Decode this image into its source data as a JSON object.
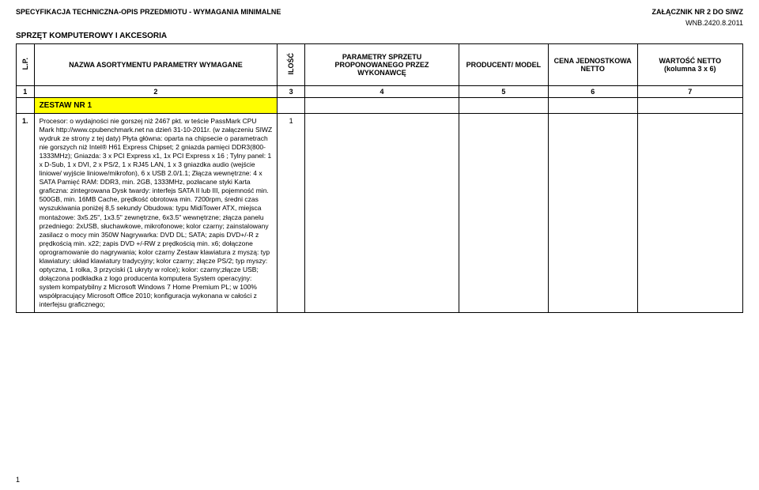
{
  "header": {
    "left": "SPECYFIKACJA TECHNICZNA-OPIS PRZEDMIOTU   - WYMAGANIA MINIMALNE",
    "right_top": "ZAŁĄCZNIK NR 2 DO SIWZ",
    "right_code": "WNB.2420.8.2011"
  },
  "section_title": "SPRZĘT KOMPUTEROWY I AKCESORIA",
  "columns": {
    "lp": "L.P.",
    "name": "NAZWA ASORTYMENTU PARAMETRY WYMAGANE",
    "qty": "ILOŚĆ",
    "proposed": "PARAMETRY SPRZETU PROPONOWANEGO PRZEZ WYKONAWCĘ",
    "producer": "PRODUCENT/ MODEL",
    "unit_price": "CENA JEDNOSTKOWA NETTO",
    "value": "WARTOŚĆ NETTO (kolumna 3 x 6)"
  },
  "num_row": [
    "1",
    "2",
    "3",
    "4",
    "5",
    "6",
    "7"
  ],
  "rows": {
    "zestaw_label": "ZESTAW NR 1",
    "item_lp": "1.",
    "item_qty": "1",
    "item_desc": "Procesor: o wydajności nie gorszej niż 2467 pkt. w teście PassMark CPU Mark http://www.cpubenchmark.net na dzień 31-10-2011r. (w załączeniu SIWZ wydruk ze strony z tej daty) Płyta główna: oparta na chipsecie o parametrach nie gorszych niż Intel® H61 Express Chipset; 2 gniazda pamięci DDR3(800-1333MHz); Gniazda: 3 x PCI Express x1, 1x PCI Express x 16 ; Tylny panel: 1 x D-Sub, 1 x DVI, 2 x PS/2, 1 x RJ45 LAN, 1 x 3 gniazdka audio (wejście liniowe/ wyjście liniowe/mikrofon), 6 x USB 2.0/1.1; Złącza wewnętrzne: 4 x SATA Pamięć RAM: DDR3, min. 2GB, 1333MHz, pozłacane styki Karta graficzna:  zintegrowana Dysk twardy: interfejs SATA II lub III, pojemność min. 500GB, min. 16MB Cache, prędkość obrotowa min. 7200rpm, średni czas wyszukiwania poniżej 8,5 sekundy Obudowa: typu MidiTower ATX, miejsca montażowe: 3x5.25\", 1x3.5\" zewnętrzne, 6x3.5\" wewnętrzne; złącza panelu przedniego: 2xUSB, słuchawkowe, mikrofonowe; kolor czarny; zainstalowany zasilacz o mocy min 350W Nagrywarka: DVD DL; SATA; zapis DVD+/-R z prędkością min. x22; zapis DVD +/-RW z prędkością min. x6; dołączone oprogramowanie do nagrywania; kolor czarny Zestaw klawiatura z myszą: typ klawiatury: układ klawiatury tradycyjny; kolor czarny; złącze PS/2; typ myszy: optyczna, 1 rolka, 3 przyciski (1 ukryty w rolce); kolor: czarny;złącze USB; dołączona podkładka z logo producenta komputera System operacyjny:  system kompatybilny z Microsoft Windows 7 Home Premium PL; w 100% współpracujący Microsoft Office 2010; konfiguracja wykonana w całości z interfejsu graficznego;"
  },
  "page_number": "1",
  "style": {
    "highlight_bg": "#ffff00",
    "border_color": "#000000",
    "bg": "#ffffff"
  }
}
